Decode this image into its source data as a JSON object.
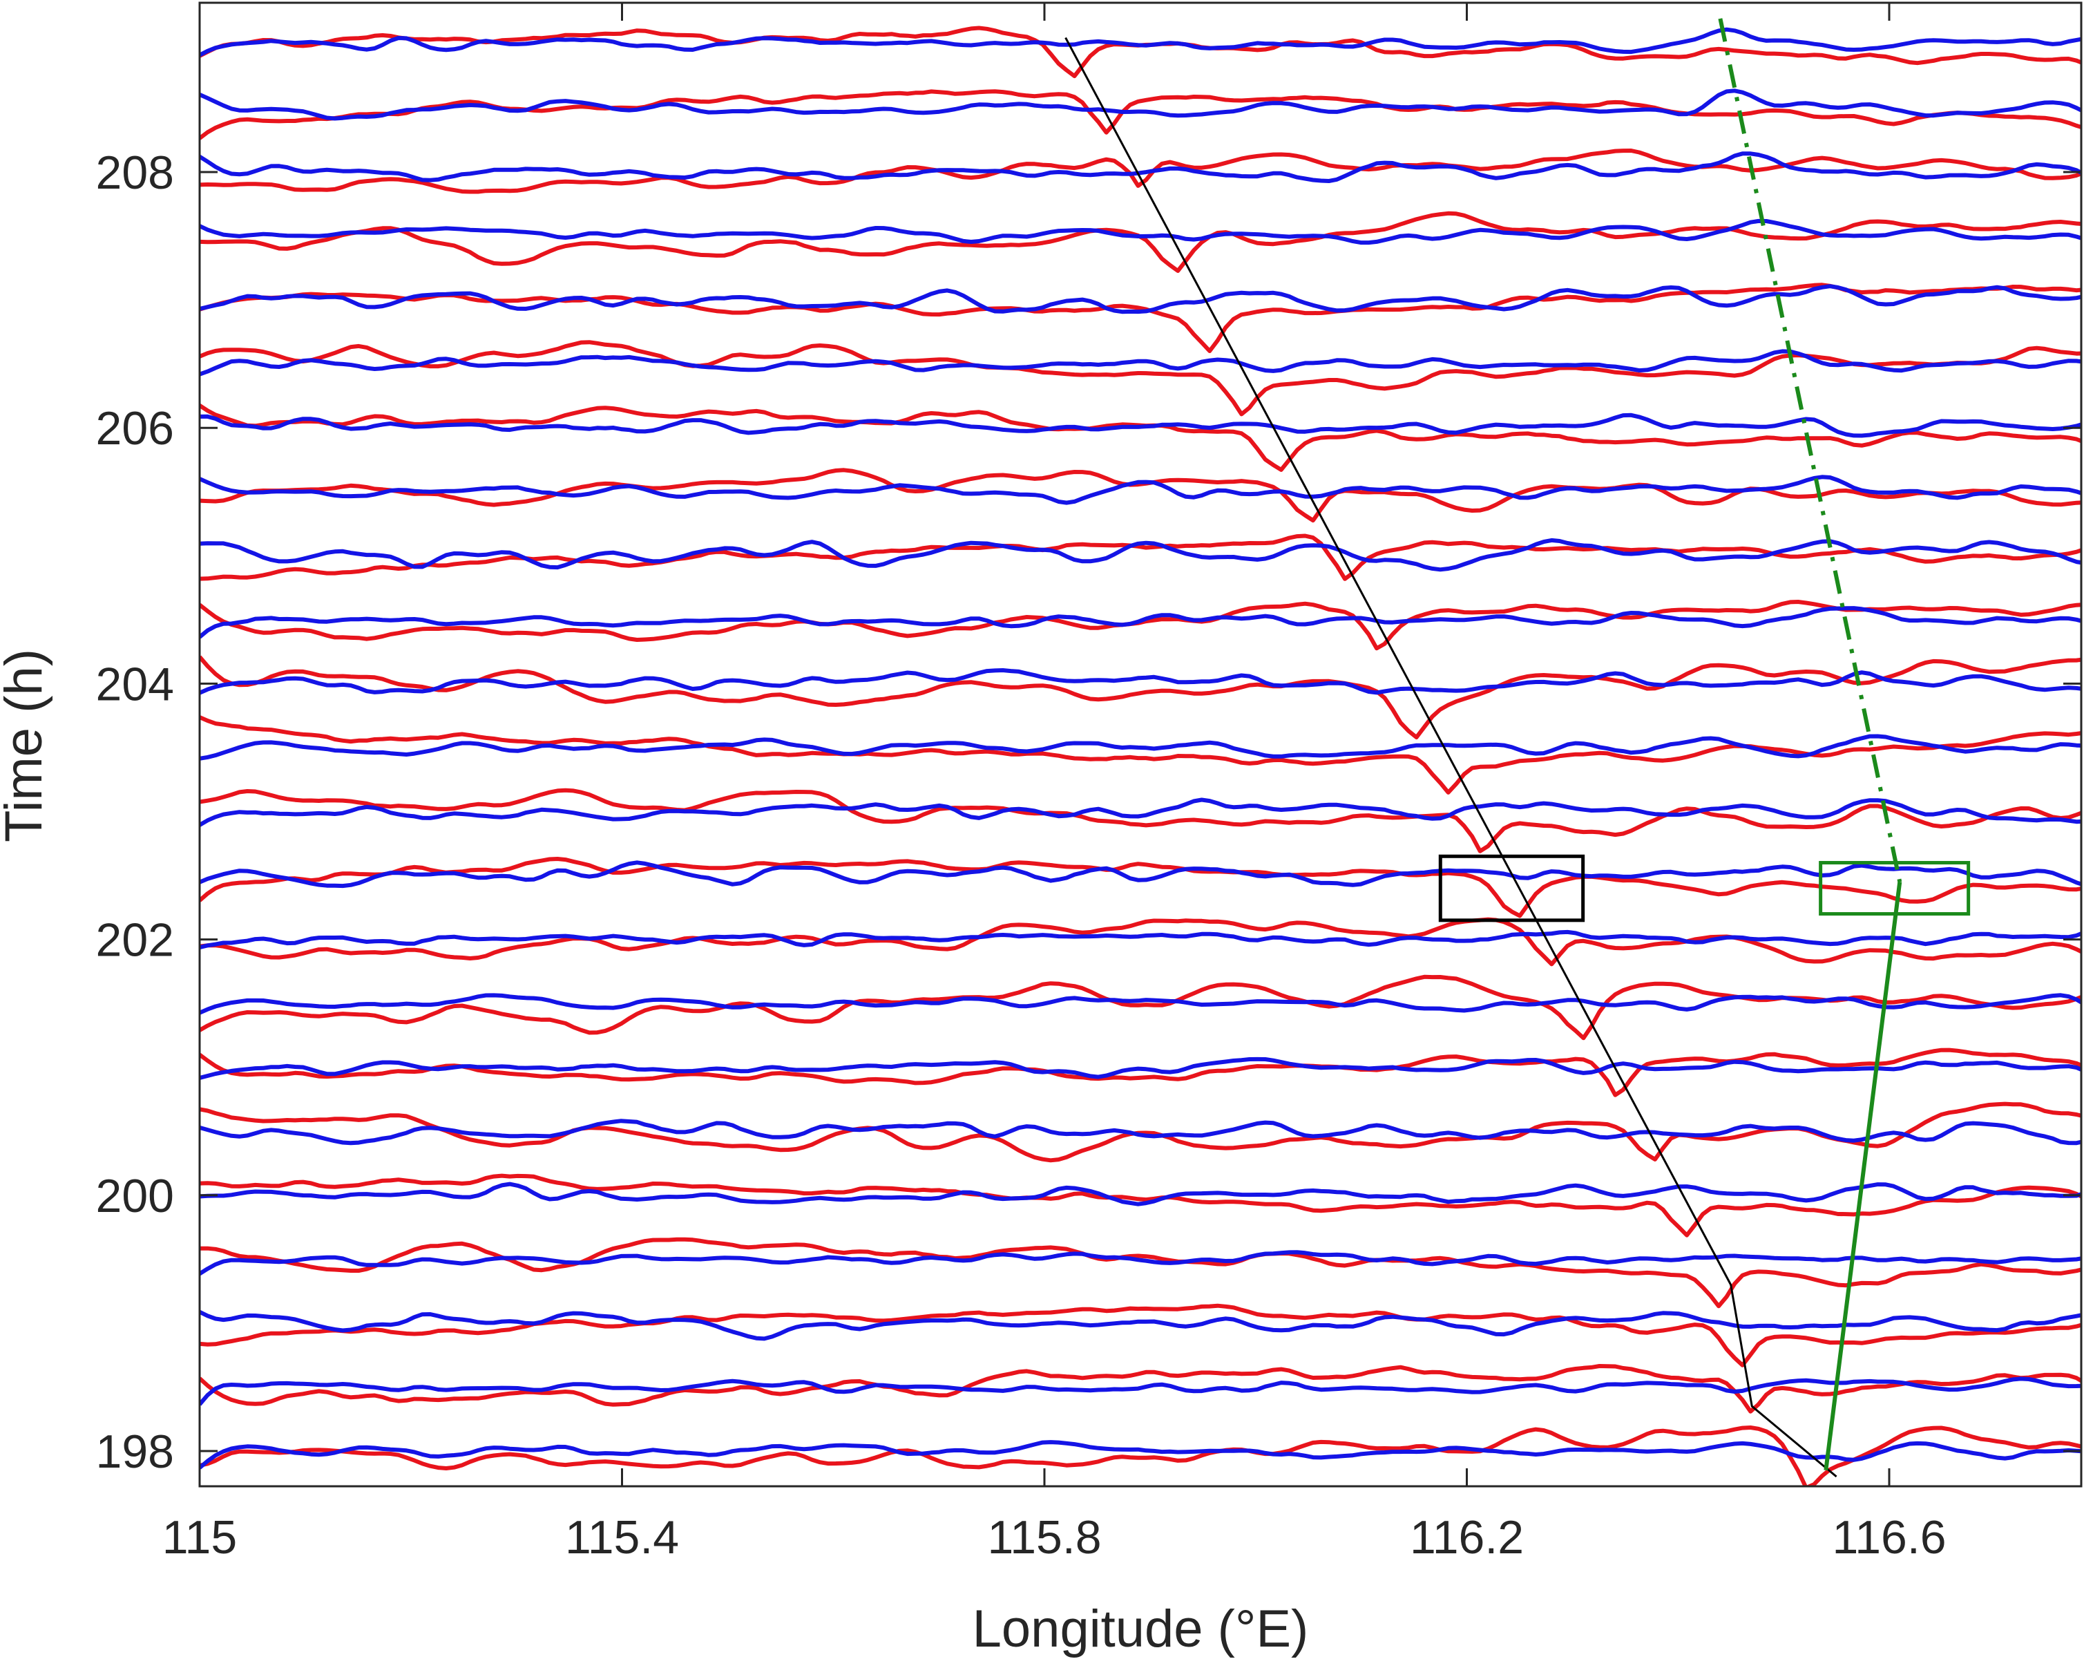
{
  "chart_data": {
    "type": "line",
    "title": "",
    "xlabel": "Longitude (°E)",
    "ylabel": "Time (h)",
    "xlim": [
      115.0,
      116.8
    ],
    "ylim": [
      197.7,
      209.3
    ],
    "xticks": [
      115.0,
      115.4,
      115.8,
      116.2,
      116.6
    ],
    "xtick_labels": [
      "115",
      "115.4",
      "115.8",
      "116.2",
      "116.6"
    ],
    "yticks": [
      198,
      200,
      202,
      204,
      206,
      208
    ],
    "ytick_labels": [
      "198",
      "200",
      "202",
      "204",
      "206",
      "208"
    ],
    "grid": false,
    "legend": "none",
    "trace_times": [
      198.0,
      198.5,
      199.0,
      199.5,
      200.0,
      200.5,
      201.0,
      201.5,
      202.0,
      202.5,
      203.0,
      203.5,
      204.0,
      204.5,
      205.0,
      205.5,
      206.0,
      206.5,
      207.0,
      207.5,
      208.0,
      208.5,
      209.0
    ],
    "series": [
      {
        "color": "#e8141c",
        "stroke": "solid"
      },
      {
        "color": "#1414e6",
        "stroke": "solid"
      }
    ],
    "annotations": {
      "black_trend": {
        "color": "#000000",
        "points": [
          [
            115.82,
            209.05
          ],
          [
            116.45,
            199.3
          ],
          [
            116.47,
            198.35
          ],
          [
            116.55,
            197.8
          ]
        ]
      },
      "green_dashdot": {
        "color": "#1b8a1b",
        "points": [
          [
            116.44,
            209.2
          ],
          [
            116.61,
            202.45
          ]
        ]
      },
      "green_solid": {
        "color": "#1b8a1b",
        "points": [
          [
            116.61,
            202.45
          ],
          [
            116.54,
            197.85
          ]
        ]
      },
      "black_box": {
        "color": "#000000",
        "x": [
          116.175,
          116.31
        ],
        "y": [
          202.15,
          202.65
        ]
      },
      "green_box": {
        "color": "#1b8a1b",
        "x": [
          116.535,
          116.675
        ],
        "y": [
          202.2,
          202.6
        ]
      }
    }
  }
}
